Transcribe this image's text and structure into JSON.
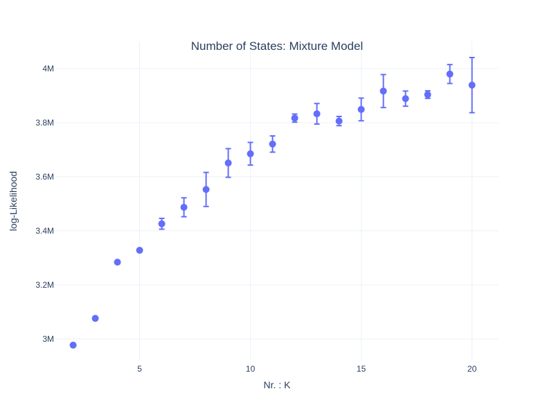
{
  "chart_data": {
    "type": "scatter",
    "title": "Number of States: Mixture Model",
    "xlabel": "Nr. : K",
    "ylabel": "log-Likelihood",
    "xlim": [
      1.2,
      21.2
    ],
    "ylim": [
      2.92,
      4.1
    ],
    "x_ticks": [
      5,
      10,
      15,
      20
    ],
    "x_tick_labels": [
      "5",
      "10",
      "15",
      "20"
    ],
    "y_ticks": [
      3.0,
      3.2,
      3.4,
      3.6,
      3.8,
      4.0
    ],
    "y_tick_labels": [
      "3M",
      "3.2M",
      "3.4M",
      "3.6M",
      "3.8M",
      "4M"
    ],
    "y_unit": "millions",
    "grid": true,
    "color": "#636efa",
    "series": [
      {
        "name": "log-Likelihood",
        "x": [
          2,
          3,
          4,
          5,
          6,
          7,
          8,
          9,
          10,
          11,
          12,
          13,
          14,
          15,
          16,
          17,
          18,
          19,
          20
        ],
        "y": [
          2.977,
          3.076,
          3.284,
          3.328,
          3.426,
          3.487,
          3.553,
          3.651,
          3.685,
          3.721,
          3.817,
          3.833,
          3.806,
          3.849,
          3.917,
          3.889,
          3.904,
          3.98,
          3.939
        ],
        "error": [
          0,
          0,
          0,
          0,
          0.02,
          0.035,
          0.063,
          0.053,
          0.042,
          0.03,
          0.015,
          0.038,
          0.017,
          0.042,
          0.061,
          0.028,
          0.014,
          0.035,
          0.102
        ]
      }
    ]
  }
}
